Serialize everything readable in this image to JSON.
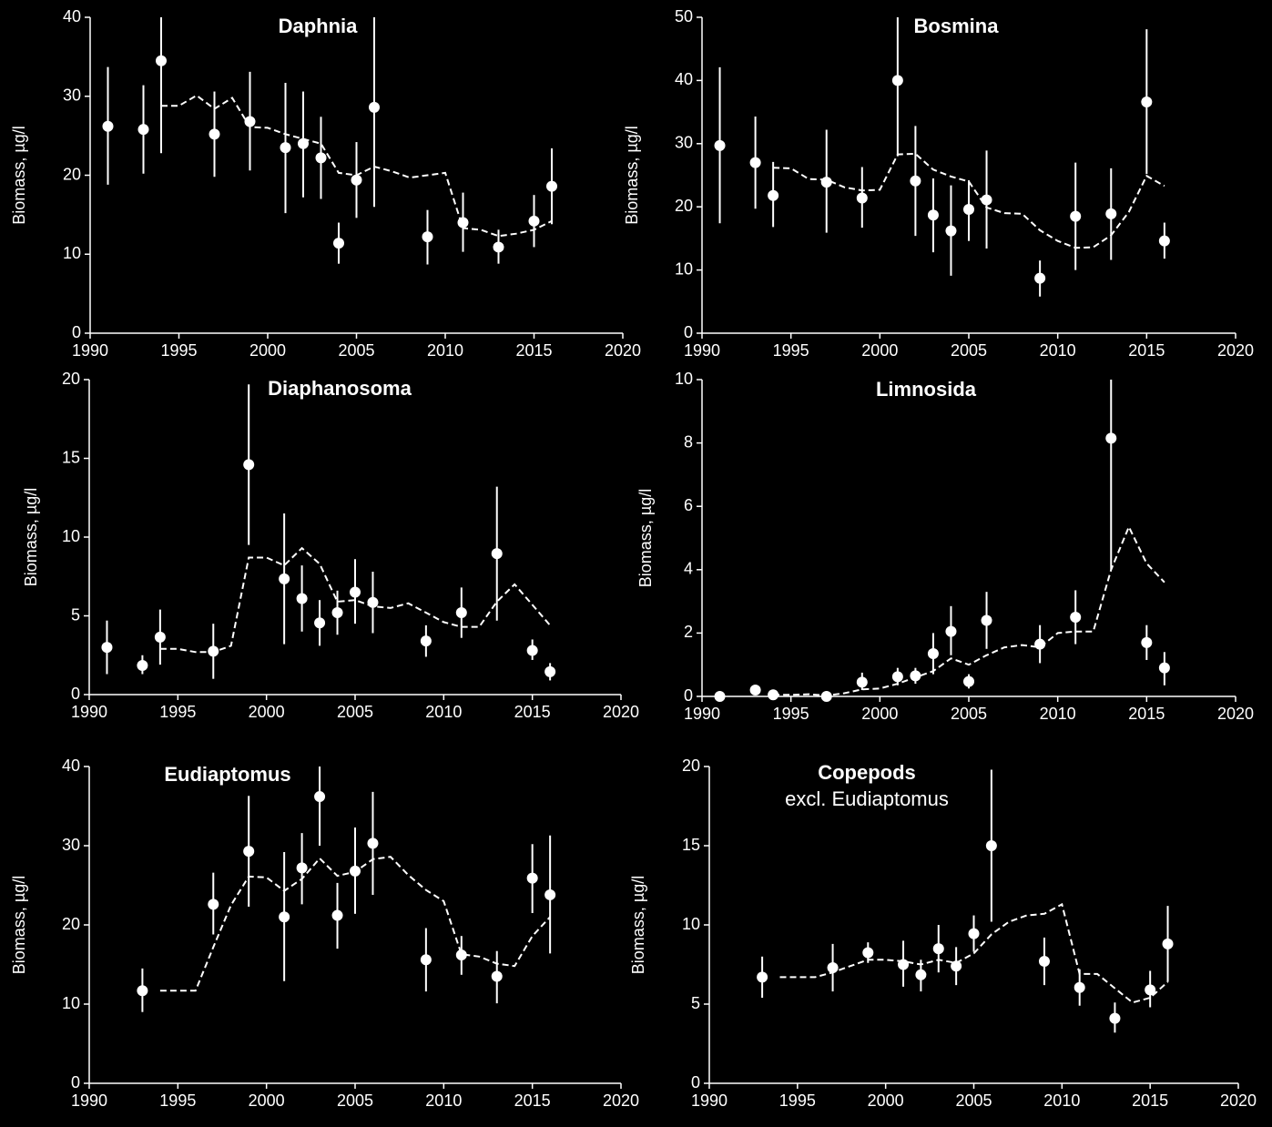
{
  "chart_data": [
    {
      "type": "scatter",
      "title": "Daphnia",
      "y_label": "Biomass, µg/l",
      "color": "#ffffff",
      "xlim": [
        1990,
        2020
      ],
      "xticks": [
        1990,
        1995,
        2000,
        2005,
        2010,
        2015,
        2020
      ],
      "ylim": [
        0,
        40
      ],
      "yticks": [
        0,
        10,
        20,
        30,
        40
      ],
      "points": {
        "x": [
          1991,
          1993,
          1994,
          1997,
          1999,
          2001,
          2002,
          2003,
          2004,
          2005,
          2006,
          2009,
          2011,
          2013,
          2015,
          2016
        ],
        "values": [
          26.2,
          25.8,
          34.5,
          25.2,
          26.8,
          23.5,
          24.0,
          22.2,
          11.4,
          19.4,
          28.6,
          12.2,
          14.0,
          10.9,
          14.2,
          18.6
        ],
        "low": [
          18.8,
          20.2,
          22.8,
          19.8,
          20.6,
          15.2,
          17.2,
          17.0,
          8.8,
          14.6,
          16.0,
          8.7,
          10.3,
          8.8,
          10.9,
          13.8
        ],
        "high": [
          33.7,
          31.4,
          40,
          30.6,
          33.1,
          31.7,
          30.6,
          27.4,
          14.0,
          24.2,
          40,
          15.6,
          17.8,
          13.1,
          17.5,
          23.4
        ]
      },
      "trend": {
        "x": [
          1994,
          1995,
          1996,
          1997,
          1998,
          1999,
          2000,
          2001,
          2002,
          2003,
          2004,
          2005,
          2006,
          2007,
          2008,
          2009,
          2010,
          2011,
          2012,
          2013,
          2014,
          2015,
          2016
        ],
        "values": [
          28.8,
          28.8,
          30.1,
          28.4,
          29.8,
          26.1,
          26.0,
          25.2,
          24.6,
          24.0,
          20.3,
          20.0,
          21.1,
          20.5,
          19.7,
          20.0,
          20.3,
          13.3,
          13.1,
          12.3,
          12.6,
          13.1,
          14.2
        ]
      }
    },
    {
      "type": "scatter",
      "title": "Bosmina",
      "y_label": "Biomass, µg/l",
      "color": "#ffffff",
      "xlim": [
        1990,
        2020
      ],
      "xticks": [
        1990,
        1995,
        2000,
        2005,
        2010,
        2015,
        2020
      ],
      "ylim": [
        0,
        50
      ],
      "yticks": [
        0,
        10,
        20,
        30,
        40,
        50
      ],
      "points": {
        "x": [
          1991,
          1993,
          1994,
          1997,
          1999,
          2001,
          2002,
          2003,
          2004,
          2005,
          2006,
          2009,
          2011,
          2013,
          2015,
          2016
        ],
        "values": [
          29.7,
          27.0,
          21.8,
          23.9,
          21.4,
          40.0,
          24.1,
          18.7,
          16.2,
          19.6,
          21.1,
          8.7,
          18.5,
          18.9,
          36.6,
          14.6
        ],
        "low": [
          17.4,
          19.7,
          16.8,
          15.9,
          16.7,
          28.0,
          15.4,
          12.8,
          9.1,
          14.6,
          13.4,
          5.8,
          10.0,
          11.6,
          25.2,
          11.8
        ],
        "high": [
          42.1,
          34.3,
          27.1,
          32.2,
          26.3,
          50,
          32.8,
          24.5,
          23.4,
          24.2,
          28.9,
          11.5,
          27.0,
          26.1,
          48.1,
          17.5
        ]
      },
      "trend": {
        "x": [
          1994,
          1995,
          1996,
          1997,
          1998,
          1999,
          2000,
          2001,
          2002,
          2003,
          2004,
          2005,
          2006,
          2007,
          2008,
          2009,
          2010,
          2011,
          2012,
          2013,
          2014,
          2015,
          2016
        ],
        "values": [
          26.2,
          26.1,
          24.4,
          24.3,
          23.1,
          22.6,
          22.7,
          28.3,
          28.4,
          25.9,
          24.8,
          24.0,
          19.9,
          19.0,
          18.9,
          16.3,
          14.6,
          13.5,
          13.6,
          15.5,
          19.2,
          24.9,
          23.3
        ]
      }
    },
    {
      "type": "scatter",
      "title": "Diaphanosoma",
      "y_label": "Biomass, µg/l",
      "color": "#ffffff",
      "xlim": [
        1990,
        2020
      ],
      "xticks": [
        1990,
        1995,
        2000,
        2005,
        2010,
        2015,
        2020
      ],
      "ylim": [
        0,
        20
      ],
      "yticks": [
        0,
        5,
        10,
        15,
        20
      ],
      "points": {
        "x": [
          1991,
          1993,
          1994,
          1997,
          1999,
          2001,
          2002,
          2003,
          2004,
          2005,
          2006,
          2009,
          2011,
          2013,
          2015,
          2016
        ],
        "values": [
          3.0,
          1.85,
          3.65,
          2.75,
          14.6,
          7.35,
          6.1,
          4.55,
          5.2,
          6.5,
          5.85,
          3.4,
          5.2,
          8.95,
          2.8,
          1.45
        ],
        "low": [
          1.3,
          1.3,
          1.9,
          1.0,
          9.5,
          3.2,
          4.0,
          3.1,
          3.8,
          4.5,
          3.9,
          2.4,
          3.6,
          4.7,
          2.2,
          0.9
        ],
        "high": [
          4.7,
          2.5,
          5.4,
          4.5,
          19.7,
          11.5,
          8.2,
          6.0,
          6.6,
          8.6,
          7.8,
          4.4,
          6.8,
          13.2,
          3.5,
          2.0
        ]
      },
      "trend": {
        "x": [
          1994,
          1995,
          1996,
          1997,
          1998,
          1999,
          2000,
          2001,
          2002,
          2003,
          2004,
          2005,
          2006,
          2007,
          2008,
          2009,
          2010,
          2011,
          2012,
          2013,
          2014,
          2015,
          2016
        ],
        "values": [
          2.9,
          2.9,
          2.7,
          2.7,
          3.1,
          8.7,
          8.7,
          8.2,
          9.3,
          8.3,
          5.9,
          6.0,
          5.6,
          5.5,
          5.8,
          5.2,
          4.6,
          4.3,
          4.3,
          5.9,
          7.0,
          5.7,
          4.4
        ]
      }
    },
    {
      "type": "scatter",
      "title": "Limnosida",
      "y_label": "Biomass, µg/l",
      "color": "#ffffff",
      "xlim": [
        1990,
        2020
      ],
      "xticks": [
        1990,
        1995,
        2000,
        2005,
        2010,
        2015,
        2020
      ],
      "ylim": [
        0,
        10
      ],
      "yticks": [
        0,
        2,
        4,
        6,
        8,
        10
      ],
      "points": {
        "x": [
          1991,
          1993,
          1994,
          1997,
          1999,
          2001,
          2002,
          2003,
          2004,
          2005,
          2006,
          2009,
          2011,
          2013,
          2015,
          2016
        ],
        "values": [
          0,
          0.2,
          0.05,
          0,
          0.45,
          0.62,
          0.65,
          1.35,
          2.05,
          0.47,
          2.4,
          1.65,
          2.5,
          8.15,
          1.7,
          0.9
        ],
        "low": [
          0,
          0.2,
          0.05,
          0,
          0.2,
          0.35,
          0.4,
          0.7,
          1.3,
          0.25,
          1.5,
          1.05,
          1.65,
          4.0,
          1.15,
          0.35
        ],
        "high": [
          0,
          0.2,
          0.05,
          0,
          0.75,
          0.9,
          0.9,
          2.0,
          2.85,
          0.7,
          3.3,
          2.25,
          3.35,
          10,
          2.25,
          1.4
        ]
      },
      "trend": {
        "x": [
          1994,
          1995,
          1996,
          1997,
          1998,
          1999,
          2000,
          2001,
          2002,
          2003,
          2004,
          2005,
          2006,
          2007,
          2008,
          2009,
          2010,
          2011,
          2012,
          2013,
          2014,
          2015,
          2016
        ],
        "values": [
          0.05,
          0.05,
          0.07,
          0.03,
          0.1,
          0.22,
          0.25,
          0.4,
          0.6,
          0.8,
          1.2,
          1.0,
          1.3,
          1.55,
          1.62,
          1.55,
          2.0,
          2.05,
          2.05,
          4.0,
          5.35,
          4.2,
          3.6
        ]
      }
    },
    {
      "type": "scatter",
      "title": "Eudiaptomus",
      "y_label": "Biomass, µg/l",
      "color": "#ffffff",
      "xlim": [
        1990,
        2020
      ],
      "xticks": [
        1990,
        1995,
        2000,
        2005,
        2010,
        2015,
        2020
      ],
      "ylim": [
        0,
        40
      ],
      "yticks": [
        0,
        10,
        20,
        30,
        40
      ],
      "points": {
        "x": [
          1993,
          1997,
          1999,
          2001,
          2002,
          2003,
          2004,
          2005,
          2006,
          2009,
          2011,
          2013,
          2015,
          2016
        ],
        "values": [
          11.7,
          22.6,
          29.3,
          21.0,
          27.2,
          36.2,
          21.2,
          26.8,
          30.3,
          15.6,
          16.2,
          13.5,
          25.9,
          23.8
        ],
        "low": [
          9.0,
          18.8,
          22.3,
          12.9,
          22.6,
          30.0,
          17.0,
          21.4,
          23.8,
          11.6,
          13.7,
          10.1,
          21.5,
          16.4
        ],
        "high": [
          14.5,
          26.6,
          36.3,
          29.2,
          31.6,
          40,
          25.3,
          32.3,
          36.8,
          19.6,
          18.6,
          16.7,
          30.2,
          31.3
        ]
      },
      "trend": {
        "x": [
          1994,
          1995,
          1996,
          1997,
          1998,
          1999,
          2000,
          2001,
          2002,
          2003,
          2004,
          2005,
          2006,
          2007,
          2008,
          2009,
          2010,
          2011,
          2012,
          2013,
          2014,
          2015,
          2016
        ],
        "values": [
          11.7,
          11.7,
          11.7,
          17.2,
          22.5,
          26.1,
          26.0,
          24.3,
          25.8,
          28.4,
          26.2,
          26.7,
          28.3,
          28.6,
          26.3,
          24.4,
          23.0,
          16.3,
          16.0,
          15.1,
          14.8,
          18.6,
          21.0
        ]
      }
    },
    {
      "type": "scatter",
      "title": "Copepods",
      "subtitle": "excl. Eudiaptomus",
      "y_label": "Biomass, µg/l",
      "color": "#ffffff",
      "xlim": [
        1990,
        2020
      ],
      "xticks": [
        1990,
        1995,
        2000,
        2005,
        2010,
        2015,
        2020
      ],
      "ylim": [
        0,
        20
      ],
      "yticks": [
        0,
        5,
        10,
        15,
        20
      ],
      "points": {
        "x": [
          1993,
          1997,
          1999,
          2001,
          2002,
          2003,
          2004,
          2005,
          2006,
          2009,
          2011,
          2013,
          2015,
          2016
        ],
        "values": [
          6.7,
          7.3,
          8.25,
          7.5,
          6.85,
          8.5,
          7.4,
          9.45,
          15.0,
          7.7,
          6.05,
          4.1,
          5.9,
          8.8
        ],
        "low": [
          5.4,
          5.8,
          7.6,
          6.1,
          5.8,
          7.0,
          6.2,
          8.3,
          10.2,
          6.2,
          4.9,
          3.2,
          4.8,
          6.4
        ],
        "high": [
          8.0,
          8.8,
          8.9,
          9.0,
          7.8,
          10.0,
          8.6,
          10.6,
          19.8,
          9.2,
          7.2,
          5.1,
          7.1,
          11.2
        ]
      },
      "trend": {
        "x": [
          1994,
          1995,
          1996,
          1997,
          1998,
          1999,
          2000,
          2001,
          2002,
          2003,
          2004,
          2005,
          2006,
          2007,
          2008,
          2009,
          2010,
          2011,
          2012,
          2013,
          2014,
          2015,
          2016
        ],
        "values": [
          6.7,
          6.7,
          6.7,
          7.0,
          7.4,
          7.8,
          7.8,
          7.7,
          7.5,
          7.8,
          7.6,
          8.2,
          9.4,
          10.2,
          10.6,
          10.7,
          11.3,
          6.9,
          6.9,
          6.0,
          5.1,
          5.4,
          6.4
        ]
      }
    }
  ]
}
